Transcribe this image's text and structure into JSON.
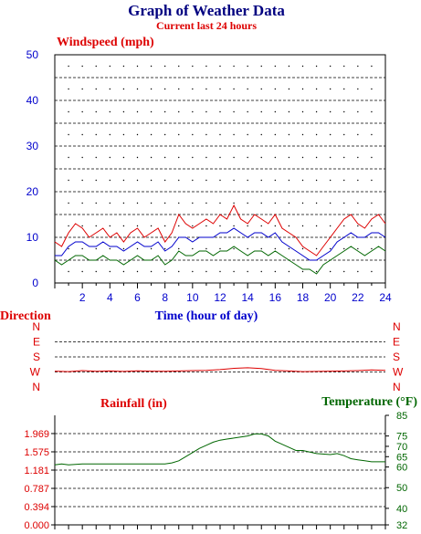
{
  "chart_data": [
    {
      "type": "line",
      "title": "Graph of Weather Data",
      "subtitle": "Current last 24 hours",
      "ylabel": "Windspeed (mph)",
      "xlabel": "Time (hour of day)",
      "ylim": [
        0,
        50
      ],
      "xlim": [
        0,
        24
      ],
      "grid": true,
      "y_ticks": [
        "0",
        "10",
        "20",
        "30",
        "40",
        "50"
      ],
      "x_ticks": [
        "2",
        "4",
        "6",
        "8",
        "10",
        "12",
        "14",
        "16",
        "18",
        "20",
        "22",
        "24"
      ],
      "x": [
        0,
        0.5,
        1,
        1.5,
        2,
        2.5,
        3,
        3.5,
        4,
        4.5,
        5,
        5.5,
        6,
        6.5,
        7,
        7.5,
        8,
        8.5,
        9,
        9.5,
        10,
        10.5,
        11,
        11.5,
        12,
        12.5,
        13,
        13.5,
        14,
        14.5,
        15,
        15.5,
        16,
        16.5,
        17,
        17.5,
        18,
        18.5,
        19,
        19.5,
        20,
        20.5,
        21,
        21.5,
        22,
        22.5,
        23,
        23.5,
        24
      ],
      "series": [
        {
          "color": "#dd0000",
          "values": [
            9,
            8,
            11,
            13,
            12,
            10,
            11,
            12,
            10,
            11,
            9,
            11,
            12,
            10,
            11,
            12,
            9,
            11,
            15,
            13,
            12,
            13,
            14,
            13,
            15,
            14,
            17,
            14,
            13,
            15,
            14,
            13,
            15,
            12,
            11,
            10,
            8,
            7,
            6,
            8,
            10,
            12,
            14,
            15,
            13,
            12,
            14,
            15,
            13
          ]
        },
        {
          "color": "#0000cc",
          "values": [
            6,
            6,
            8,
            9,
            9,
            8,
            8,
            9,
            8,
            8,
            7,
            8,
            9,
            8,
            8,
            9,
            7,
            8,
            10,
            10,
            9,
            10,
            10,
            10,
            11,
            11,
            12,
            11,
            10,
            11,
            11,
            10,
            11,
            9,
            8,
            7,
            6,
            5,
            5,
            6,
            7,
            9,
            10,
            11,
            10,
            10,
            11,
            11,
            10
          ]
        },
        {
          "color": "#006600",
          "values": [
            5,
            4,
            5,
            6,
            6,
            5,
            5,
            6,
            5,
            5,
            4,
            5,
            6,
            5,
            5,
            6,
            4,
            5,
            7,
            6,
            6,
            7,
            7,
            6,
            7,
            7,
            8,
            7,
            6,
            7,
            7,
            6,
            7,
            6,
            5,
            4,
            3,
            3,
            2,
            4,
            5,
            6,
            7,
            8,
            7,
            6,
            7,
            8,
            7
          ]
        }
      ]
    },
    {
      "type": "line",
      "ylabel": "Direction",
      "y_ticks": [
        "N",
        "W",
        "S",
        "E",
        "N"
      ],
      "x": [
        0,
        1,
        2,
        3,
        4,
        5,
        6,
        7,
        8,
        9,
        10,
        11,
        12,
        13,
        14,
        15,
        16,
        17,
        18,
        19,
        20,
        21,
        22,
        23,
        24
      ],
      "series": [
        {
          "color": "#dd0000",
          "values": [
            95,
            92,
            98,
            94,
            96,
            93,
            97,
            95,
            94,
            96,
            98,
            100,
            104,
            112,
            115,
            110,
            100,
            96,
            92,
            93,
            95,
            96,
            98,
            102,
            100
          ]
        }
      ]
    },
    {
      "type": "line",
      "ylabel": "Rainfall (in)",
      "y2label": "Temperature (°F)",
      "ylim": [
        0,
        2.362
      ],
      "y2lim": [
        32,
        85
      ],
      "y_ticks": [
        "0.000",
        "0.394",
        "0.787",
        "1.181",
        "1.575",
        "1.969"
      ],
      "y2_ticks": [
        "32",
        "40",
        "50",
        "60",
        "65",
        "70",
        "75",
        "85"
      ],
      "x": [
        0,
        0.5,
        1,
        2,
        3,
        4,
        5,
        6,
        7,
        8,
        8.5,
        9,
        9.5,
        10,
        10.5,
        11,
        11.5,
        12,
        12.5,
        13,
        13.5,
        14,
        14.5,
        15,
        15.5,
        16,
        16.5,
        17,
        17.5,
        18,
        19,
        20,
        20.5,
        21,
        21.5,
        22,
        22.5,
        23,
        24
      ],
      "series": [
        {
          "color": "#006600",
          "values": [
            61,
            61.5,
            61,
            61.5,
            61.5,
            61.5,
            61.5,
            61.5,
            61.5,
            61.5,
            62,
            63,
            65,
            67,
            69,
            70.5,
            72,
            73,
            73.5,
            74,
            74.5,
            75,
            76,
            76,
            75,
            72.5,
            71,
            69.5,
            68,
            68,
            66.5,
            66,
            66.5,
            65.5,
            64,
            63.5,
            63,
            62.5,
            62.5
          ]
        }
      ]
    }
  ]
}
